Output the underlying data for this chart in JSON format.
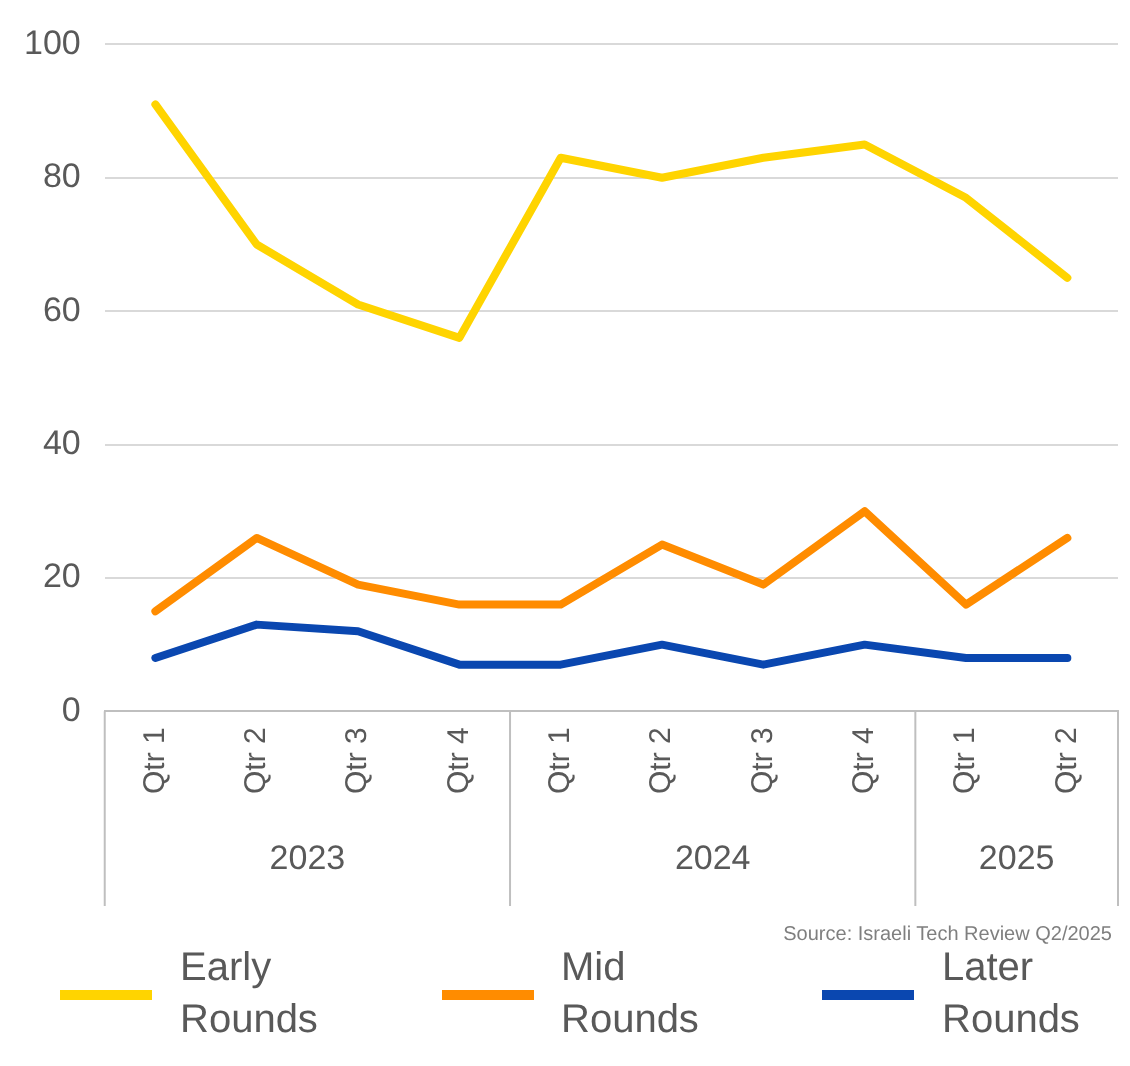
{
  "chart_data": {
    "type": "line",
    "categories": [
      "Qtr 1",
      "Qtr 2",
      "Qtr 3",
      "Qtr 4",
      "Qtr 1",
      "Qtr 2",
      "Qtr 3",
      "Qtr 4",
      "Qtr 1",
      "Qtr 2"
    ],
    "series": [
      {
        "name": "Early Rounds",
        "color": "#ffd400",
        "values": [
          91,
          70,
          61,
          56,
          83,
          80,
          83,
          85,
          77,
          65
        ]
      },
      {
        "name": "Mid Rounds",
        "color": "#ff8c00",
        "values": [
          15,
          26,
          19,
          16,
          16,
          25,
          19,
          30,
          16,
          26
        ]
      },
      {
        "name": "Later Rounds",
        "color": "#0a47b0",
        "values": [
          8,
          13,
          12,
          7,
          7,
          10,
          7,
          10,
          8,
          8
        ]
      }
    ],
    "ylim": [
      0,
      100
    ],
    "yticks": [
      0,
      20,
      40,
      60,
      80,
      100
    ],
    "grid": "y",
    "legend": "bottom",
    "marker": "none",
    "line_style": "solid",
    "annotations": [
      "2023",
      "2024",
      "2025",
      "Source: Israeli Tech Review Q2/2025"
    ]
  }
}
